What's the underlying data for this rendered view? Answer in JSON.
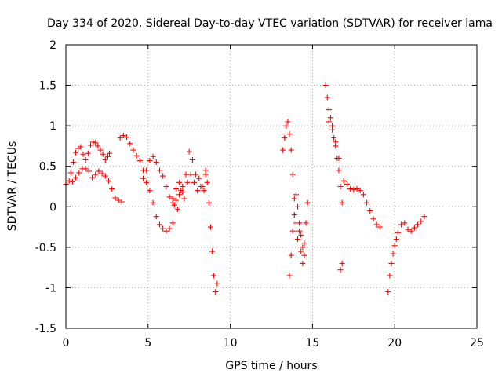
{
  "chart_data": {
    "type": "scatter",
    "title": "Day 334 of 2020, Sidereal Day-to-day VTEC variation (SDTVAR) for receiver lama",
    "xlabel": "GPS time / hours",
    "ylabel": "SDTVAR / TECUs",
    "xlim": [
      0,
      25
    ],
    "ylim": [
      -1.5,
      2
    ],
    "xticks": [
      0,
      5,
      10,
      15,
      20,
      25
    ],
    "xtick_labels": [
      "0",
      "5",
      "10",
      "15",
      "20",
      "25"
    ],
    "yticks": [
      -1.5,
      -1,
      -0.5,
      0,
      0.5,
      1,
      1.5,
      2
    ],
    "ytick_labels": [
      "-1.5",
      "-1",
      "-0.5",
      "0",
      "0.5",
      "1",
      "1.5",
      "2"
    ],
    "grid": true,
    "marker": "+",
    "marker_color": "#ff0000",
    "series": [
      {
        "name": "SDTVAR",
        "segments": [
          {
            "x": [
              0.0,
              0.2,
              0.4,
              0.6,
              0.8,
              1.0,
              1.2,
              1.4,
              1.6,
              1.8,
              2.0,
              2.2,
              2.4,
              2.6,
              2.8,
              3.0,
              3.2,
              3.4
            ],
            "y": [
              0.28,
              0.32,
              0.31,
              0.36,
              0.42,
              0.47,
              0.47,
              0.44,
              0.36,
              0.4,
              0.44,
              0.41,
              0.38,
              0.32,
              0.22,
              0.11,
              0.08,
              0.06
            ]
          },
          {
            "x": [
              0.3,
              0.45,
              0.6,
              0.75,
              0.9,
              1.05,
              1.2,
              1.35,
              1.5,
              1.65,
              1.8,
              1.95,
              2.1,
              2.25,
              2.4,
              2.55,
              2.65
            ],
            "y": [
              0.42,
              0.55,
              0.67,
              0.72,
              0.74,
              0.65,
              0.58,
              0.66,
              0.76,
              0.8,
              0.79,
              0.75,
              0.7,
              0.65,
              0.58,
              0.62,
              0.66
            ]
          },
          {
            "x": [
              3.3,
              3.5,
              3.7,
              3.9,
              4.1,
              4.3,
              4.5,
              4.7,
              4.9,
              5.1,
              5.3,
              5.5,
              5.7,
              5.9,
              6.1,
              6.3,
              6.5
            ],
            "y": [
              0.85,
              0.88,
              0.86,
              0.78,
              0.7,
              0.63,
              0.57,
              0.45,
              0.3,
              0.2,
              0.05,
              -0.12,
              -0.22,
              -0.27,
              -0.3,
              -0.27,
              -0.2
            ]
          },
          {
            "x": [
              4.7,
              4.9,
              5.1,
              5.3,
              5.5,
              5.7,
              5.9,
              6.1,
              6.3,
              6.5,
              6.7,
              6.9,
              7.1
            ],
            "y": [
              0.35,
              0.45,
              0.57,
              0.62,
              0.55,
              0.45,
              0.38,
              0.25,
              0.12,
              0.05,
              0.08,
              0.15,
              0.18
            ]
          },
          {
            "x": [
              6.5,
              6.7,
              6.9,
              7.1,
              7.3,
              7.5,
              7.7,
              7.9,
              8.1,
              8.3,
              8.5
            ],
            "y": [
              0.1,
              0.22,
              0.3,
              0.25,
              0.4,
              0.68,
              0.58,
              0.4,
              0.35,
              0.25,
              0.4
            ]
          },
          {
            "x": [
              6.6,
              6.8,
              7.0,
              7.2,
              7.4,
              7.6,
              7.8,
              8.0,
              8.2,
              8.4
            ],
            "y": [
              0.02,
              -0.03,
              0.2,
              0.1,
              0.3,
              0.4,
              0.3,
              0.2,
              0.25,
              0.2
            ]
          },
          {
            "x": [
              8.5,
              8.6,
              8.7,
              8.8,
              8.9,
              9.0,
              9.1,
              9.2
            ],
            "y": [
              0.45,
              0.3,
              0.05,
              -0.25,
              -0.55,
              -0.85,
              -1.05,
              -0.95
            ]
          },
          {
            "x": [
              13.2,
              13.3,
              13.4,
              13.5,
              13.6,
              13.7,
              13.8,
              13.9,
              14.0,
              14.1,
              14.2,
              14.3,
              14.4,
              14.5,
              14.6,
              14.7
            ],
            "y": [
              0.7,
              0.85,
              1.0,
              1.05,
              0.9,
              0.7,
              0.4,
              0.1,
              -0.2,
              -0.4,
              -0.3,
              -0.55,
              -0.7,
              -0.45,
              -0.2,
              0.05
            ]
          },
          {
            "x": [
              13.6,
              13.7,
              13.8,
              13.9,
              14.0,
              14.1,
              14.2,
              14.3,
              14.4,
              14.5
            ],
            "y": [
              -0.85,
              -0.6,
              -0.3,
              -0.1,
              0.15,
              0.0,
              -0.2,
              -0.35,
              -0.5,
              -0.6
            ]
          },
          {
            "x": [
              15.8,
              15.9,
              16.0,
              16.1,
              16.2,
              16.3,
              16.4,
              16.5,
              16.6,
              16.7,
              16.8
            ],
            "y": [
              1.5,
              1.35,
              1.2,
              1.1,
              0.95,
              0.85,
              0.75,
              0.6,
              0.45,
              0.25,
              0.05
            ]
          },
          {
            "x": [
              16.0,
              16.2,
              16.4,
              16.6
            ],
            "y": [
              1.05,
              1.0,
              0.8,
              0.6
            ]
          },
          {
            "x": [
              16.7,
              16.8
            ],
            "y": [
              -0.78,
              -0.7
            ]
          },
          {
            "x": [
              16.9,
              17.1,
              17.3,
              17.5,
              17.7,
              17.9,
              18.1,
              18.3,
              18.5,
              18.7,
              18.9,
              19.1
            ],
            "y": [
              0.32,
              0.28,
              0.22,
              0.21,
              0.22,
              0.2,
              0.15,
              0.05,
              -0.05,
              -0.15,
              -0.22,
              -0.25
            ]
          },
          {
            "x": [
              19.6,
              19.7,
              19.8,
              19.9,
              20.0,
              20.1,
              20.2,
              20.4,
              20.6,
              20.8,
              21.0,
              21.2,
              21.4,
              21.6,
              21.8
            ],
            "y": [
              -1.05,
              -0.85,
              -0.7,
              -0.58,
              -0.48,
              -0.4,
              -0.32,
              -0.22,
              -0.2,
              -0.28,
              -0.3,
              -0.26,
              -0.22,
              -0.18,
              -0.12
            ]
          }
        ]
      }
    ]
  }
}
